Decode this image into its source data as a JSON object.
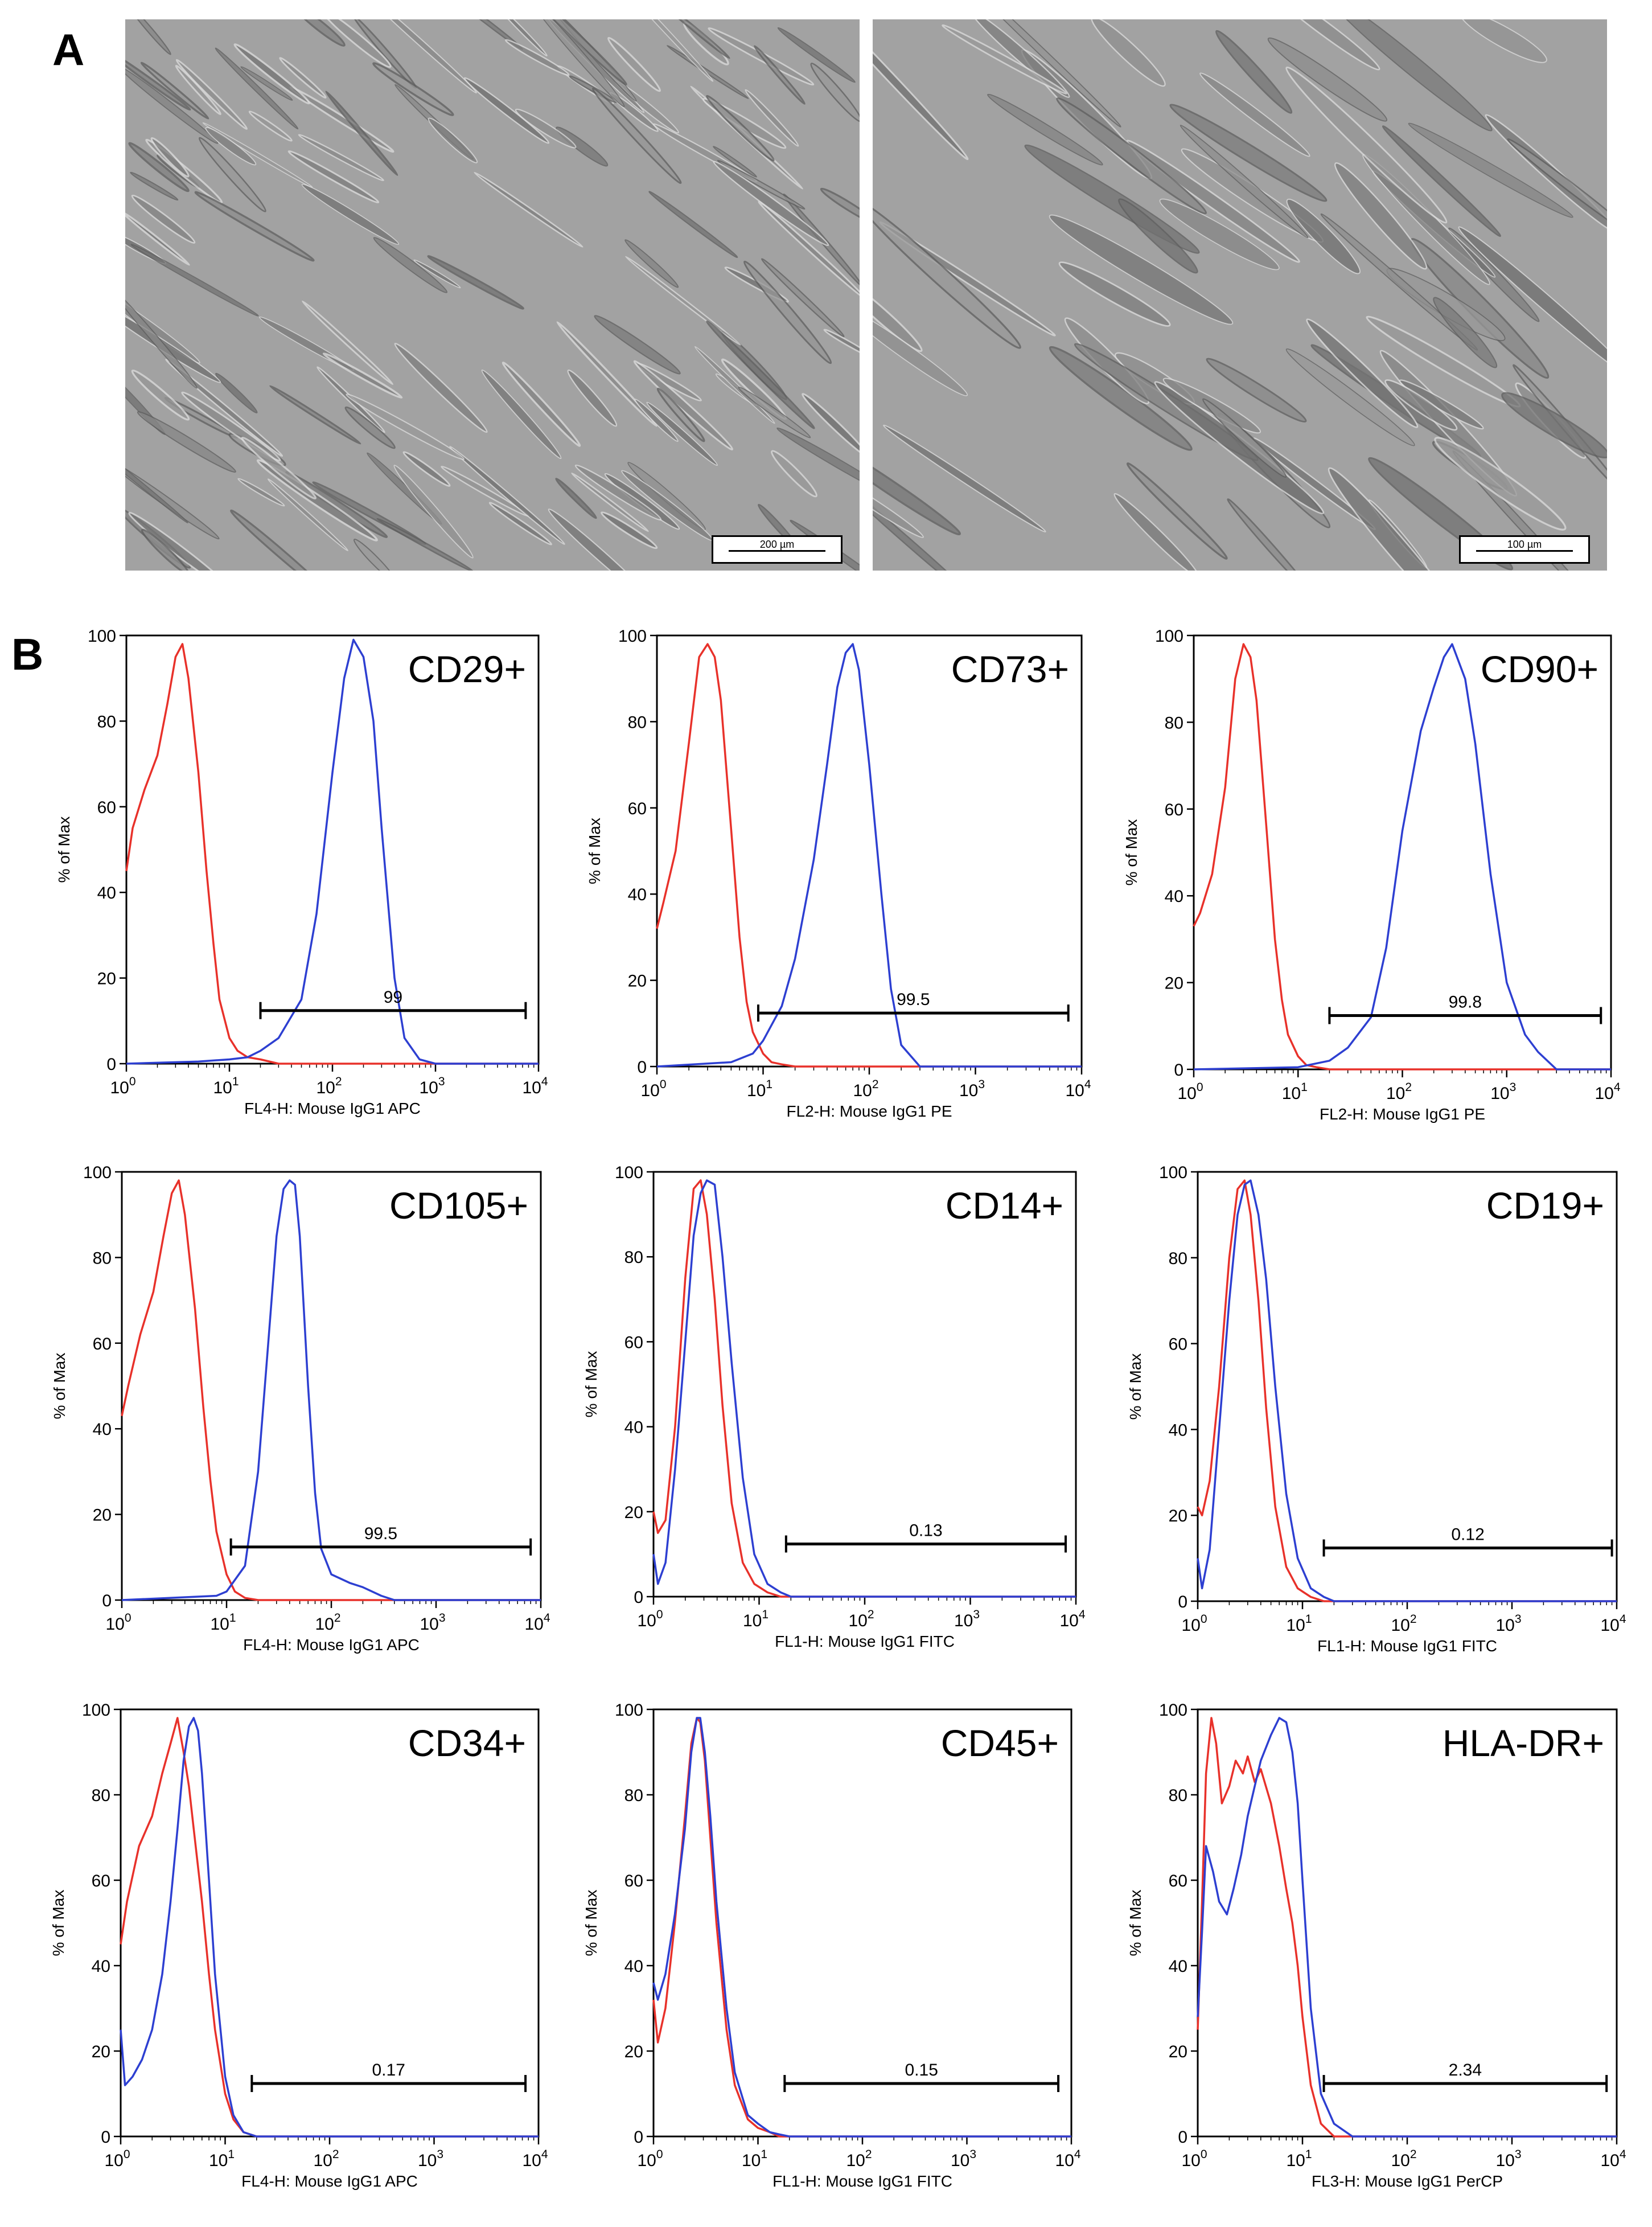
{
  "panel_a": {
    "letter": "A",
    "images": [
      {
        "scale_label": "200 µm"
      },
      {
        "scale_label": "100 µm"
      }
    ]
  },
  "panel_b": {
    "letter": "B",
    "colors": {
      "isotype": "#e8312a",
      "marker": "#2d3fd1",
      "gate": "#000000"
    }
  },
  "chart_data": [
    {
      "type": "line",
      "title": "CD29+",
      "xlabel": "FL4-H: Mouse IgG1 APC",
      "ylabel": "% of Max",
      "xscale": "log",
      "xlim": [
        1,
        10000
      ],
      "ylim": [
        0,
        100
      ],
      "gate_range": [
        20,
        7500
      ],
      "gate_value": "99",
      "series": [
        {
          "x": [
            1,
            1.15,
            1.5,
            2,
            2.5,
            3,
            3.5,
            4,
            5,
            6,
            7,
            8,
            10,
            12,
            15,
            20,
            30
          ],
          "y": [
            45,
            55,
            64,
            72,
            84,
            95,
            98,
            90,
            68,
            45,
            28,
            15,
            6,
            3,
            1.5,
            1,
            0
          ]
        },
        {
          "x": [
            1,
            5,
            10,
            15,
            20,
            30,
            50,
            70,
            100,
            130,
            160,
            200,
            250,
            300,
            400,
            500,
            700,
            1000
          ],
          "y": [
            0,
            0.5,
            1,
            1.5,
            3,
            6,
            15,
            35,
            68,
            90,
            99,
            95,
            80,
            55,
            20,
            6,
            1,
            0
          ]
        }
      ]
    },
    {
      "type": "line",
      "title": "CD73+",
      "xlabel": "FL2-H: Mouse IgG1 PE",
      "ylabel": "% of Max",
      "xscale": "log",
      "xlim": [
        1,
        10000
      ],
      "ylim": [
        0,
        100
      ],
      "gate_range": [
        9,
        7500
      ],
      "gate_value": "99.5",
      "series": [
        {
          "x": [
            1,
            1.15,
            1.5,
            2,
            2.5,
            3,
            3.5,
            4,
            5,
            6,
            7,
            8,
            10,
            12,
            15,
            20
          ],
          "y": [
            32,
            38,
            50,
            75,
            95,
            98,
            95,
            85,
            55,
            30,
            15,
            8,
            3,
            1,
            0.5,
            0
          ]
        },
        {
          "x": [
            1,
            5,
            8,
            10,
            15,
            20,
            30,
            40,
            50,
            60,
            70,
            80,
            100,
            130,
            160,
            200,
            300
          ],
          "y": [
            0,
            1,
            3,
            6,
            14,
            25,
            48,
            70,
            88,
            96,
            98,
            92,
            70,
            40,
            18,
            5,
            0
          ]
        }
      ]
    },
    {
      "type": "line",
      "title": "CD90+",
      "xlabel": "FL2-H: Mouse IgG1 PE",
      "ylabel": "% of Max",
      "xscale": "log",
      "xlim": [
        1,
        10000
      ],
      "ylim": [
        0,
        100
      ],
      "gate_range": [
        20,
        8000
      ],
      "gate_value": "99.8",
      "series": [
        {
          "x": [
            1,
            1.15,
            1.5,
            2,
            2.5,
            3,
            3.5,
            4,
            5,
            6,
            7,
            8,
            10,
            12,
            15,
            20
          ],
          "y": [
            33,
            36,
            45,
            65,
            90,
            98,
            95,
            85,
            55,
            30,
            16,
            8,
            3,
            1,
            0.5,
            0
          ]
        },
        {
          "x": [
            1,
            10,
            20,
            30,
            50,
            70,
            100,
            150,
            200,
            250,
            300,
            400,
            500,
            700,
            1000,
            1500,
            2000,
            3000
          ],
          "y": [
            0,
            0.5,
            2,
            5,
            12,
            28,
            55,
            78,
            88,
            95,
            98,
            90,
            75,
            45,
            20,
            8,
            4,
            0
          ]
        }
      ]
    },
    {
      "type": "line",
      "title": "CD105+",
      "xlabel": "FL4-H: Mouse IgG1 APC",
      "ylabel": "% of Max",
      "xscale": "log",
      "xlim": [
        1,
        10000
      ],
      "ylim": [
        0,
        100
      ],
      "gate_range": [
        11,
        8000
      ],
      "gate_value": "99.5",
      "series": [
        {
          "x": [
            1,
            1.15,
            1.5,
            2,
            2.5,
            3,
            3.5,
            4,
            5,
            6,
            7,
            8,
            10,
            12,
            15,
            20
          ],
          "y": [
            43,
            50,
            62,
            72,
            85,
            95,
            98,
            90,
            68,
            45,
            28,
            16,
            6,
            2,
            0.5,
            0
          ]
        },
        {
          "x": [
            1,
            8,
            10,
            15,
            20,
            25,
            30,
            35,
            40,
            45,
            50,
            60,
            70,
            80,
            100,
            150,
            200,
            300,
            400
          ],
          "y": [
            0,
            1,
            2,
            8,
            30,
            60,
            85,
            96,
            98,
            97,
            85,
            50,
            25,
            12,
            6,
            4,
            3,
            1,
            0
          ]
        }
      ]
    },
    {
      "type": "line",
      "title": "CD14+",
      "xlabel": "FL1-H: Mouse IgG1 FITC",
      "ylabel": "% of Max",
      "xscale": "log",
      "xlim": [
        1,
        10000
      ],
      "ylim": [
        0,
        100
      ],
      "gate_range": [
        18,
        8000
      ],
      "gate_value": "0.13",
      "series": [
        {
          "x": [
            1,
            1.1,
            1.3,
            1.6,
            2,
            2.4,
            2.8,
            3.2,
            3.8,
            4.5,
            5.5,
            7,
            9,
            12,
            16
          ],
          "y": [
            20,
            15,
            18,
            40,
            75,
            96,
            98,
            90,
            70,
            45,
            22,
            8,
            3,
            1,
            0
          ]
        },
        {
          "x": [
            1,
            1.1,
            1.3,
            1.6,
            2,
            2.4,
            2.8,
            3.2,
            3.8,
            4.5,
            5.5,
            7,
            9,
            12,
            16,
            20
          ],
          "y": [
            10,
            3,
            8,
            30,
            60,
            85,
            95,
            98,
            97,
            80,
            55,
            28,
            10,
            3,
            1,
            0
          ]
        }
      ]
    },
    {
      "type": "line",
      "title": "CD19+",
      "xlabel": "FL1-H: Mouse IgG1 FITC",
      "ylabel": "% of Max",
      "xscale": "log",
      "xlim": [
        1,
        10000
      ],
      "ylim": [
        0,
        100
      ],
      "gate_range": [
        16,
        9000
      ],
      "gate_value": "0.12",
      "series": [
        {
          "x": [
            1,
            1.1,
            1.3,
            1.6,
            2,
            2.4,
            2.8,
            3.2,
            3.8,
            4.5,
            5.5,
            7,
            9,
            12,
            16
          ],
          "y": [
            22,
            20,
            28,
            50,
            80,
            96,
            98,
            90,
            70,
            45,
            22,
            8,
            3,
            1,
            0
          ]
        },
        {
          "x": [
            1,
            1.1,
            1.3,
            1.6,
            2,
            2.4,
            2.8,
            3.2,
            3.8,
            4.5,
            5.5,
            7,
            9,
            12,
            16,
            20
          ],
          "y": [
            10,
            3,
            12,
            40,
            70,
            90,
            97,
            98,
            90,
            75,
            50,
            25,
            10,
            3,
            1,
            0
          ]
        }
      ]
    },
    {
      "type": "line",
      "title": "CD34+",
      "xlabel": "FL4-H: Mouse IgG1 APC",
      "ylabel": "% of Max",
      "xscale": "log",
      "xlim": [
        1,
        10000
      ],
      "ylim": [
        0,
        100
      ],
      "gate_range": [
        18,
        7500
      ],
      "gate_value": "0.17",
      "series": [
        {
          "x": [
            1,
            1.15,
            1.5,
            2,
            2.5,
            3,
            3.5,
            4,
            4.5,
            5,
            6,
            7,
            8,
            10,
            12,
            15,
            20
          ],
          "y": [
            45,
            55,
            68,
            75,
            85,
            92,
            98,
            90,
            82,
            72,
            55,
            38,
            25,
            10,
            4,
            1,
            0
          ]
        },
        {
          "x": [
            1,
            1.1,
            1.3,
            1.6,
            2,
            2.5,
            3,
            3.5,
            4,
            4.5,
            5,
            5.5,
            6,
            7,
            8,
            10,
            12,
            15,
            20
          ],
          "y": [
            25,
            12,
            14,
            18,
            25,
            38,
            55,
            72,
            88,
            96,
            98,
            95,
            85,
            60,
            38,
            14,
            5,
            1,
            0
          ]
        }
      ]
    },
    {
      "type": "line",
      "title": "CD45+",
      "xlabel": "FL1-H: Mouse IgG1 FITC",
      "ylabel": "% of Max",
      "xscale": "log",
      "xlim": [
        1,
        10000
      ],
      "ylim": [
        0,
        100
      ],
      "gate_range": [
        18,
        7500
      ],
      "gate_value": "0.15",
      "series": [
        {
          "x": [
            1,
            1.1,
            1.3,
            1.6,
            2,
            2.3,
            2.6,
            2.8,
            3.1,
            3.5,
            4,
            5,
            6,
            8,
            10,
            13,
            16
          ],
          "y": [
            32,
            22,
            30,
            50,
            75,
            92,
            98,
            97,
            88,
            70,
            50,
            25,
            12,
            4,
            2,
            1,
            0
          ]
        },
        {
          "x": [
            1,
            1.1,
            1.3,
            1.6,
            2,
            2.3,
            2.6,
            2.8,
            3.1,
            3.5,
            4,
            5,
            6,
            8,
            10,
            13,
            16,
            20
          ],
          "y": [
            36,
            32,
            38,
            52,
            72,
            90,
            98,
            98,
            90,
            75,
            55,
            30,
            15,
            5,
            3,
            1,
            0.5,
            0
          ]
        }
      ]
    },
    {
      "type": "line",
      "title": "HLA-DR+",
      "xlabel": "FL3-H: Mouse IgG1 PerCP",
      "ylabel": "% of Max",
      "xscale": "log",
      "xlim": [
        1,
        10000
      ],
      "ylim": [
        0,
        100
      ],
      "gate_range": [
        16,
        8000
      ],
      "gate_value": "2.34",
      "series": [
        {
          "x": [
            1,
            1.1,
            1.2,
            1.35,
            1.5,
            1.7,
            2,
            2.3,
            2.7,
            3,
            3.5,
            4,
            5,
            6,
            7,
            8,
            9,
            10,
            12,
            15,
            20
          ],
          "y": [
            25,
            55,
            85,
            98,
            92,
            78,
            82,
            88,
            85,
            89,
            83,
            86,
            78,
            68,
            58,
            50,
            40,
            28,
            12,
            3,
            0
          ]
        },
        {
          "x": [
            1,
            1.1,
            1.2,
            1.4,
            1.6,
            1.9,
            2.2,
            2.6,
            3,
            3.5,
            4,
            5,
            6,
            7,
            8,
            9,
            10,
            12,
            15,
            20,
            30
          ],
          "y": [
            28,
            48,
            68,
            62,
            55,
            52,
            58,
            66,
            75,
            82,
            88,
            94,
            98,
            97,
            90,
            78,
            60,
            30,
            10,
            3,
            0
          ]
        }
      ]
    }
  ]
}
